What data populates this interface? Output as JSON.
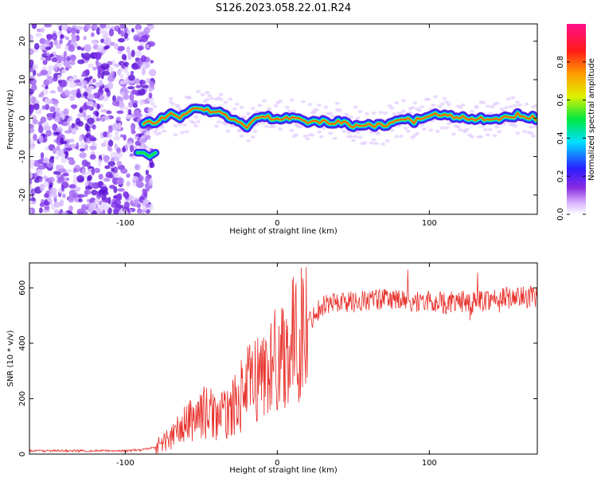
{
  "title": "S126.2023.058.22.01.R24",
  "colors": {
    "snr_line": "#e8302a",
    "frame": "#000000",
    "background": "#ffffff"
  },
  "chart_data": [
    {
      "type": "heatmap",
      "xlabel": "Height of straight line (km)",
      "ylabel": "Frequency (Hz)",
      "xlim": [
        -163,
        171
      ],
      "ylim": [
        -25,
        24.5
      ],
      "x_ticks": [
        -100,
        0,
        100
      ],
      "y_ticks": [
        -20,
        -10,
        0,
        10,
        20
      ],
      "grid": false,
      "colorbar": {
        "label": "Normalized spectral amplitude",
        "range": [
          0.0,
          1.0
        ],
        "ticks": [
          0.0,
          0.2,
          0.4,
          0.6,
          0.8
        ],
        "colormap": "rainbow (white - purple - blue - cyan - green - yellow - orange - red - magenta)"
      },
      "ridge_center_hz": {
        "x": [
          -90,
          -85,
          -80,
          -75,
          -70,
          -65,
          -60,
          -55,
          -50,
          -45,
          -40,
          -35,
          -30,
          -25,
          -20,
          -15,
          -10,
          -5,
          0,
          10,
          20,
          30,
          40,
          50,
          60,
          70,
          80,
          90,
          100,
          110,
          120,
          130,
          140,
          150,
          160,
          170
        ],
        "y": [
          -1,
          -1,
          -1,
          0,
          1,
          0,
          1,
          2,
          2,
          2,
          2,
          1,
          0,
          -1,
          -2,
          0,
          1,
          0,
          0,
          0,
          -1,
          -1,
          -1,
          -2,
          -2,
          -2,
          0,
          -1,
          1,
          1,
          0,
          0,
          0,
          0,
          1,
          0
        ]
      },
      "secondary_branch_hz": {
        "x": [
          -92,
          -88,
          -84,
          -80
        ],
        "y": [
          -9,
          -9,
          -10,
          -9
        ]
      },
      "noise_region_km": [
        -163,
        -90
      ]
    },
    {
      "type": "line",
      "xlabel": "Height of straight line (km)",
      "ylabel": "SNR (10 * v/v)",
      "xlim": [
        -163,
        171
      ],
      "ylim": [
        0,
        690
      ],
      "x_ticks": [
        -100,
        0,
        100
      ],
      "y_ticks": [
        0,
        200,
        400,
        600
      ],
      "grid": false,
      "series": [
        {
          "x": [
            -163,
            -140,
            -120,
            -100,
            -90,
            -80,
            -70,
            -60,
            -55,
            -50,
            -45,
            -40,
            -35,
            -30,
            -25,
            -20,
            -15,
            -10,
            -5,
            0,
            5,
            10,
            15,
            20,
            25,
            30,
            40,
            50,
            60,
            70,
            80,
            90,
            100,
            110,
            120,
            130,
            140,
            150,
            160,
            171
          ],
          "y": [
            12,
            12,
            12,
            12,
            15,
            25,
            60,
            110,
            130,
            150,
            150,
            140,
            140,
            160,
            200,
            240,
            270,
            290,
            310,
            350,
            380,
            400,
            430,
            470,
            510,
            540,
            550,
            550,
            555,
            560,
            555,
            550,
            550,
            545,
            550,
            550,
            560,
            565,
            565,
            570
          ]
        }
      ]
    }
  ]
}
